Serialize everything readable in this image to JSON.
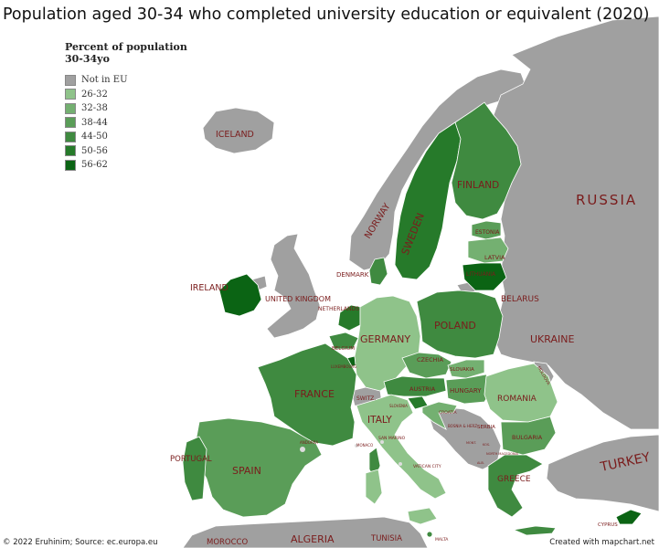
{
  "title": "Population aged 30-34 who completed university education or equivalent (2020)",
  "legend": {
    "title": "Percent of population 30-34yo",
    "items": [
      {
        "label": "Not in EU",
        "color": "#a0a0a0"
      },
      {
        "label": "26-32",
        "color": "#8fc38a"
      },
      {
        "label": "32-38",
        "color": "#74b071"
      },
      {
        "label": "38-44",
        "color": "#5a9d58"
      },
      {
        "label": "44-50",
        "color": "#3f8a40"
      },
      {
        "label": "50-56",
        "color": "#267a2a"
      },
      {
        "label": "56-62",
        "color": "#0b6414"
      }
    ]
  },
  "labels": {
    "iceland": "ICELAND",
    "norway": "NORWAY",
    "sweden": "SWEDEN",
    "finland": "FINLAND",
    "russia": "RUSSIA",
    "estonia": "ESTONIA",
    "latvia": "LATVIA",
    "lithuania": "LITHUANIA",
    "denmark": "DENMARK",
    "ireland": "IRELAND",
    "uk": "UNITED KINGDOM",
    "netherlands": "NETHERLANDS",
    "belarus": "BELARUS",
    "poland": "POLAND",
    "germany": "GERMANY",
    "belgium": "BELGIUM",
    "luxembourg": "LUXEMBOURG",
    "ukraine": "UKRAINE",
    "czechia": "CZECHIA",
    "slovakia": "SLOVAKIA",
    "moldova": "MOLDOVA",
    "france": "FRANCE",
    "switz": "SWITZ.",
    "austria": "AUSTRIA",
    "hungary": "HUNGARY",
    "romania": "ROMANIA",
    "slovenia": "SLOVENIA",
    "croatia": "CROATIA",
    "italy": "ITALY",
    "serbia": "SERBIA",
    "bosnia": "BOSNIA & HERZ.",
    "bulgaria": "BULGARIA",
    "san_marino": "SAN MARINO",
    "monaco": "MONACO",
    "andorra": "ANDORRA",
    "montenegro": "MONT.",
    "kosovo": "KOS.",
    "north_macedonia": "NORTH MACEDONIA",
    "albania": "ALB.",
    "portugal": "PORTUGAL",
    "spain": "SPAIN",
    "vatican": "VATICAN CITY",
    "greece": "GREECE",
    "turkey": "TURKEY",
    "cyprus": "CYPRUS",
    "malta": "MALTA",
    "morocco": "MOROCCO",
    "algeria": "ALGERIA",
    "tunisia": "TUNISIA"
  },
  "footer": {
    "left": "© 2022 Eruhinim; Source: ec.europa.eu",
    "right": "Created with mapchart.net"
  }
}
